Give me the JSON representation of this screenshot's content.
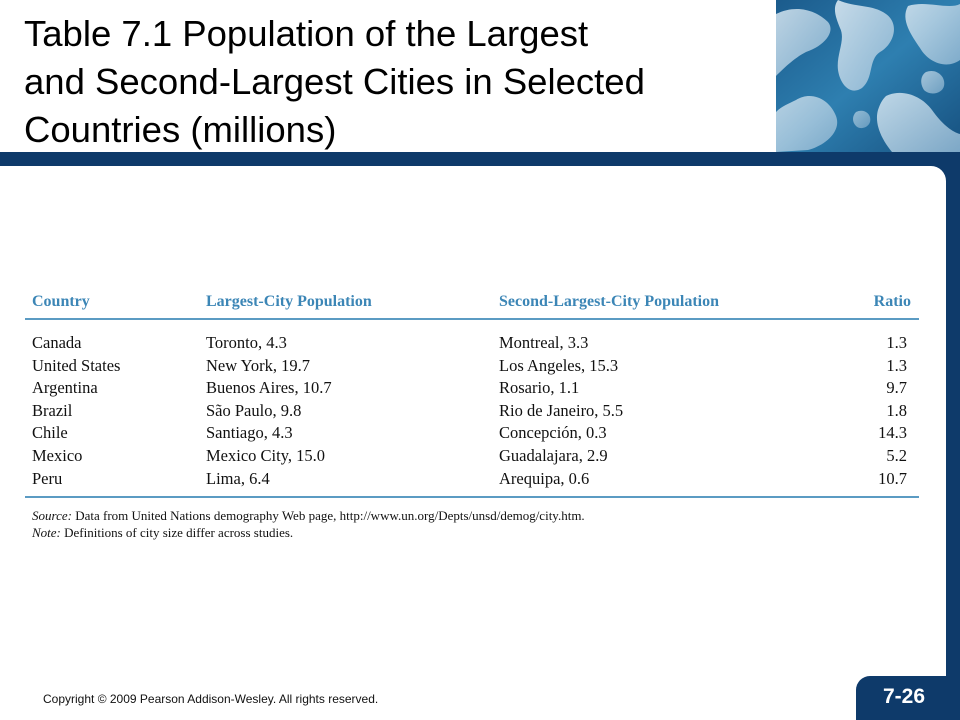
{
  "slide": {
    "title_lines": [
      "Table 7.1 Population of the Largest",
      "and Second-Largest Cities in Selected",
      "Countries (millions)"
    ],
    "copyright": "Copyright © 2009 Pearson Addison-Wesley. All rights reserved.",
    "page_number": "7-26"
  },
  "table": {
    "headers": [
      "Country",
      "Largest-City Population",
      "Second-Largest-City Population",
      "Ratio"
    ],
    "rows": [
      [
        "Canada",
        "Toronto, 4.3",
        "Montreal, 3.3",
        "1.3"
      ],
      [
        "United States",
        "New York, 19.7",
        "Los Angeles, 15.3",
        "1.3"
      ],
      [
        "Argentina",
        "Buenos Aires, 10.7",
        "Rosario, 1.1",
        "9.7"
      ],
      [
        "Brazil",
        "São Paulo, 9.8",
        "Rio de Janeiro, 5.5",
        "1.8"
      ],
      [
        "Chile",
        "Santiago, 4.3",
        "Concepción, 0.3",
        "14.3"
      ],
      [
        "Mexico",
        "Mexico City, 15.0",
        "Guadalajara, 2.9",
        "5.2"
      ],
      [
        "Peru",
        "Lima, 6.4",
        "Arequipa, 0.6",
        "10.7"
      ]
    ]
  },
  "footnotes": {
    "source_label": "Source:",
    "source_text": " Data from United Nations demography Web page, http://www.un.org/Depts/unsd/demog/city.htm.",
    "note_label": "Note:",
    "note_text": " Definitions of city size differ across studies."
  },
  "colors": {
    "header_blue": "#3c86b6",
    "rule_blue": "#5b9bc3",
    "frame_navy": "#0e3a6a"
  }
}
